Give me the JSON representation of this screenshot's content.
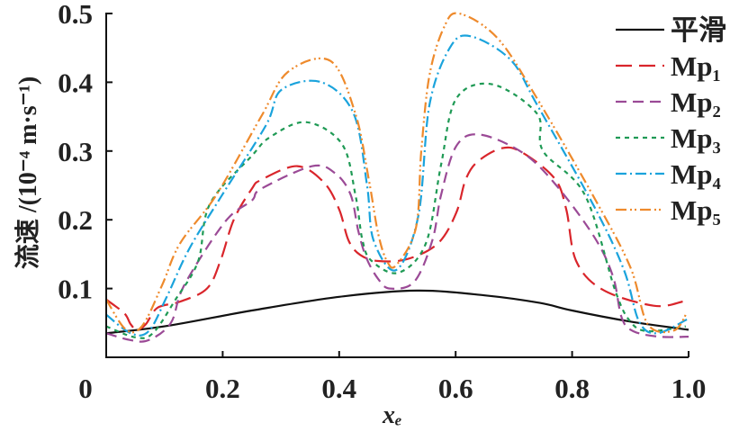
{
  "chart_data": {
    "type": "line",
    "title": "",
    "xlabel": "xₑ",
    "ylabel": "流速 /(10⁻⁴ m·s⁻¹)",
    "xlim": [
      0,
      1.0
    ],
    "ylim": [
      0,
      0.5
    ],
    "grid": false,
    "legend_position": "top-right",
    "xticks": [
      {
        "v": 0,
        "label": "0"
      },
      {
        "v": 0.2,
        "label": "0.2"
      },
      {
        "v": 0.4,
        "label": "0.4"
      },
      {
        "v": 0.6,
        "label": "0.6"
      },
      {
        "v": 0.8,
        "label": "0.8"
      },
      {
        "v": 1.0,
        "label": "1.0"
      }
    ],
    "yticks": [
      {
        "v": 0.1,
        "label": "0.1"
      },
      {
        "v": 0.2,
        "label": "0.2"
      },
      {
        "v": 0.3,
        "label": "0.3"
      },
      {
        "v": 0.4,
        "label": "0.4"
      },
      {
        "v": 0.5,
        "label": "0.5"
      }
    ],
    "series": [
      {
        "name": "平滑",
        "color": "#111111",
        "dash": "",
        "x": [
          0,
          0.1,
          0.25,
          0.4,
          0.533,
          0.65,
          0.745,
          0.8,
          0.9,
          1.0
        ],
        "y": [
          0.035,
          0.045,
          0.068,
          0.088,
          0.097,
          0.09,
          0.079,
          0.068,
          0.052,
          0.04
        ]
      },
      {
        "name": "Mp₁",
        "color": "#d9252b",
        "dash": "18 8",
        "x": [
          0,
          0.031,
          0.042,
          0.053,
          0.068,
          0.088,
          0.127,
          0.173,
          0.196,
          0.219,
          0.25,
          0.266,
          0.328,
          0.374,
          0.4,
          0.416,
          0.436,
          0.467,
          0.518,
          0.57,
          0.601,
          0.617,
          0.637,
          0.679,
          0.714,
          0.77,
          0.79,
          0.807,
          0.853,
          0.94,
          0.99
        ],
        "y": [
          0.084,
          0.064,
          0.048,
          0.04,
          0.048,
          0.072,
          0.081,
          0.1,
          0.14,
          0.2,
          0.245,
          0.258,
          0.278,
          0.254,
          0.215,
          0.17,
          0.149,
          0.14,
          0.143,
          0.166,
          0.21,
          0.258,
          0.284,
          0.304,
          0.298,
          0.26,
          0.215,
          0.14,
          0.098,
          0.075,
          0.081
        ]
      },
      {
        "name": "Mp₂",
        "color": "#9b4a96",
        "dash": "12 7",
        "x": [
          0,
          0.042,
          0.073,
          0.111,
          0.134,
          0.204,
          0.25,
          0.266,
          0.354,
          0.394,
          0.42,
          0.433,
          0.447,
          0.467,
          0.487,
          0.529,
          0.56,
          0.575,
          0.601,
          0.641,
          0.714,
          0.771,
          0.838,
          0.87,
          0.885,
          0.905,
          0.95,
          1.0
        ],
        "y": [
          0.035,
          0.025,
          0.025,
          0.05,
          0.105,
          0.197,
          0.228,
          0.245,
          0.278,
          0.267,
          0.236,
          0.183,
          0.144,
          0.114,
          0.1,
          0.11,
          0.17,
          0.236,
          0.307,
          0.324,
          0.298,
          0.252,
          0.175,
          0.118,
          0.058,
          0.038,
          0.03,
          0.03
        ]
      },
      {
        "name": "Mp₃",
        "color": "#1f9a55",
        "dash": "5 5",
        "x": [
          0,
          0.05,
          0.08,
          0.119,
          0.158,
          0.178,
          0.25,
          0.281,
          0.343,
          0.405,
          0.428,
          0.44,
          0.456,
          0.502,
          0.549,
          0.575,
          0.601,
          0.663,
          0.74,
          0.75,
          0.822,
          0.874,
          0.9,
          0.93,
          0.995
        ],
        "y": [
          0.045,
          0.029,
          0.035,
          0.084,
          0.14,
          0.223,
          0.293,
          0.32,
          0.342,
          0.31,
          0.236,
          0.17,
          0.14,
          0.123,
          0.166,
          0.28,
          0.376,
          0.397,
          0.354,
          0.3,
          0.236,
          0.097,
          0.052,
          0.038,
          0.045
        ]
      },
      {
        "name": "Mp₄",
        "color": "#1aa3dc",
        "dash": "12 4 2 4",
        "x": [
          0,
          0.042,
          0.073,
          0.104,
          0.142,
          0.196,
          0.274,
          0.301,
          0.37,
          0.425,
          0.448,
          0.459,
          0.498,
          0.536,
          0.555,
          0.59,
          0.625,
          0.694,
          0.74,
          0.838,
          0.889,
          0.915,
          0.946,
          0.997
        ],
        "y": [
          0.062,
          0.035,
          0.038,
          0.088,
          0.157,
          0.232,
          0.337,
          0.389,
          0.4,
          0.354,
          0.249,
          0.17,
          0.127,
          0.206,
          0.367,
          0.45,
          0.467,
          0.433,
          0.367,
          0.219,
          0.127,
          0.052,
          0.035,
          0.055
        ]
      },
      {
        "name": "Mp₅",
        "color": "#ee8a2c",
        "dash": "12 4 2 3 2 4",
        "x": [
          0,
          0.034,
          0.062,
          0.096,
          0.127,
          0.189,
          0.266,
          0.312,
          0.385,
          0.428,
          0.451,
          0.467,
          0.482,
          0.498,
          0.532,
          0.541,
          0.555,
          0.58,
          0.606,
          0.672,
          0.74,
          0.838,
          0.9,
          0.93,
          0.975,
          0.997
        ],
        "y": [
          0.084,
          0.04,
          0.046,
          0.105,
          0.166,
          0.236,
          0.35,
          0.415,
          0.431,
          0.354,
          0.258,
          0.18,
          0.14,
          0.134,
          0.189,
          0.3,
          0.41,
          0.48,
          0.5,
          0.464,
          0.376,
          0.232,
          0.131,
          0.048,
          0.039,
          0.065
        ]
      }
    ]
  }
}
